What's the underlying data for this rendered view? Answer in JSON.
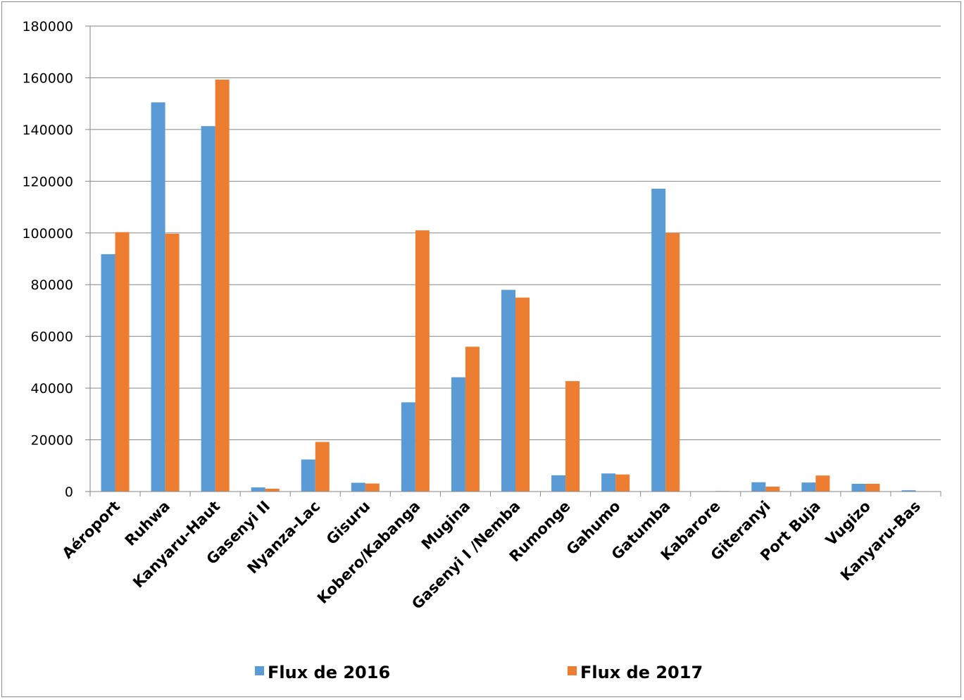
{
  "chart_data": {
    "type": "bar",
    "title": "",
    "xlabel": "",
    "ylabel": "",
    "ylim": [
      0,
      180000
    ],
    "yticks": [
      0,
      20000,
      40000,
      60000,
      80000,
      100000,
      120000,
      140000,
      160000,
      180000
    ],
    "ytick_labels": [
      "0",
      "20000",
      "40000",
      "60000",
      "80000",
      "100000",
      "120000",
      "140000",
      "160000",
      "180000"
    ],
    "grid": true,
    "legend_position": "bottom",
    "categories": [
      "Aéroport",
      "Ruhwa",
      "Kanyaru-Haut",
      "Gasenyi  II",
      "Nyanza-Lac",
      "Gisuru",
      "Kobero/Kabanga",
      "Mugina",
      "Gasenyi  I /Nemba",
      "Rumonge",
      "Gahumo",
      "Gatumba",
      "Kabarore",
      "Giteranyi",
      "Port Buja",
      "Vugizo",
      "Kanyaru-Bas"
    ],
    "series": [
      {
        "name": "Flux de 2016",
        "color": "#5b9bd5",
        "values": [
          91800,
          150500,
          141300,
          1600,
          12400,
          3400,
          34500,
          44200,
          78000,
          6300,
          7000,
          117100,
          0,
          3600,
          3500,
          3000,
          500
        ]
      },
      {
        "name": "Flux de 2017",
        "color": "#ed7d31",
        "values": [
          100300,
          99700,
          159300,
          1100,
          19200,
          3100,
          101000,
          56000,
          75000,
          42700,
          6600,
          100000,
          200,
          1900,
          6200,
          3000,
          0
        ]
      }
    ]
  }
}
